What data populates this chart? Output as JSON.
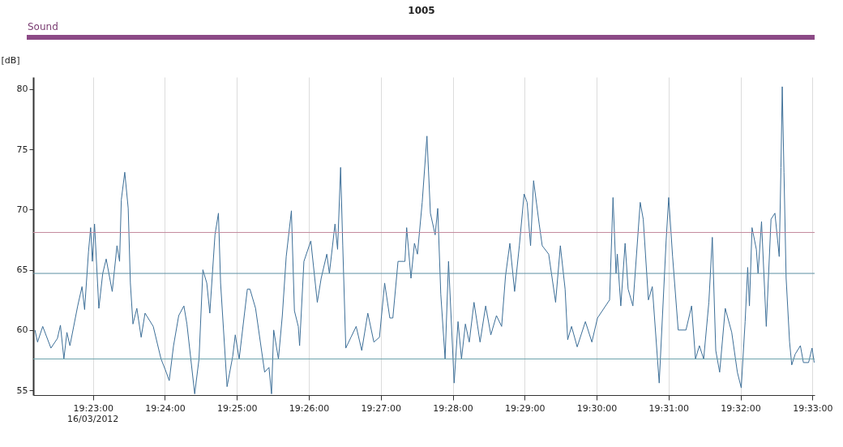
{
  "chart_data": {
    "type": "line",
    "title": "1005",
    "subtitle": "Sound",
    "ylabel": "[dB]",
    "annotations": [
      "16/03/2012"
    ],
    "x": [
      19.3699,
      19.3705,
      19.3717,
      19.3736,
      19.3751,
      19.3758,
      19.3766,
      19.3773,
      19.378,
      19.3798,
      19.3808,
      19.3814,
      19.3823,
      19.3828,
      19.3832,
      19.3837,
      19.3847,
      19.3856,
      19.3864,
      19.3878,
      19.3889,
      19.3895,
      19.3899,
      19.3907,
      19.3915,
      19.392,
      19.3926,
      19.3935,
      19.3945,
      19.3954,
      19.3973,
      19.3991,
      19.4001,
      19.401,
      19.402,
      19.4032,
      19.4044,
      19.4051,
      19.4069,
      19.4079,
      19.4088,
      19.4097,
      19.4104,
      19.4116,
      19.4124,
      19.4129,
      19.4144,
      19.4157,
      19.4163,
      19.4172,
      19.4191,
      19.4197,
      19.421,
      19.4231,
      19.4241,
      19.4247,
      19.4252,
      19.4263,
      19.4272,
      19.4281,
      19.4293,
      19.43,
      19.4309,
      19.4312,
      19.4322,
      19.4338,
      19.4353,
      19.4362,
      19.4375,
      19.4381,
      19.4394,
      19.44,
      19.4407,
      19.4412,
      19.4419,
      19.4431,
      19.4443,
      19.4456,
      19.447,
      19.4484,
      19.4497,
      19.4509,
      19.4521,
      19.4528,
      19.454,
      19.4556,
      19.456,
      19.457,
      19.4578,
      19.4585,
      19.4596,
      19.4607,
      19.4615,
      19.4626,
      19.4632,
      19.4639,
      19.4649,
      19.4657,
      19.467,
      19.4679,
      19.4687,
      19.4696,
      19.4705,
      19.4716,
      19.473,
      19.4743,
      19.4755,
      19.4768,
      19.478,
      19.4789,
      19.4799,
      19.481,
      19.4821,
      19.4832,
      19.4839,
      19.4847,
      19.4854,
      19.4867,
      19.4874,
      19.4889,
      19.4905,
      19.4916,
      19.4927,
      19.4933,
      19.4942,
      19.4955,
      19.4974,
      19.4989,
      19.5002,
      19.503,
      19.5038,
      19.5045,
      19.5048,
      19.5056,
      19.5066,
      19.5073,
      19.5084,
      19.5101,
      19.5108,
      19.512,
      19.5129,
      19.5145,
      19.5161,
      19.5167,
      19.5176,
      19.5189,
      19.5207,
      19.522,
      19.5229,
      19.5238,
      19.5248,
      19.526,
      19.5268,
      19.5276,
      19.5285,
      19.5298,
      19.5313,
      19.5326,
      19.5335,
      19.5344,
      19.535,
      19.5354,
      19.536,
      19.537,
      19.5374,
      19.5382,
      19.5393,
      19.5404,
      19.5413,
      19.5423,
      19.5427,
      19.543,
      19.5434,
      19.5439,
      19.5447,
      19.5452,
      19.546,
      19.5472,
      19.5479,
      19.5491,
      19.5499,
      19.5504
    ],
    "series": [
      {
        "color": "#3d6f98",
        "values": [
          60.0,
          59.0,
          60.3,
          58.5,
          59.3,
          60.4,
          57.6,
          59.8,
          58.7,
          62.0,
          63.6,
          61.7,
          66.5,
          68.5,
          65.7,
          68.8,
          61.8,
          64.7,
          65.9,
          63.2,
          67.0,
          65.7,
          70.8,
          73.1,
          70.1,
          63.9,
          60.5,
          61.8,
          59.4,
          61.4,
          60.3,
          57.6,
          56.7,
          55.8,
          58.7,
          61.2,
          62.0,
          60.5,
          54.7,
          57.6,
          65.0,
          63.9,
          61.4,
          67.9,
          69.7,
          63.9,
          55.3,
          57.8,
          59.6,
          57.6,
          63.4,
          63.4,
          61.8,
          56.5,
          56.9,
          54.7,
          60.0,
          57.6,
          61.2,
          66.1,
          69.9,
          61.6,
          60.3,
          58.7,
          65.7,
          67.4,
          62.3,
          64.3,
          66.3,
          64.7,
          68.8,
          66.7,
          73.5,
          67.0,
          58.5,
          59.4,
          60.3,
          58.3,
          61.4,
          59.0,
          59.4,
          63.9,
          61.0,
          61.0,
          65.7,
          65.7,
          68.5,
          64.3,
          67.2,
          66.3,
          70.6,
          76.1,
          69.7,
          67.9,
          70.1,
          63.0,
          57.6,
          65.7,
          55.6,
          60.7,
          57.6,
          60.5,
          59.0,
          62.3,
          59.0,
          62.0,
          59.6,
          61.2,
          60.3,
          64.5,
          67.2,
          63.2,
          67.0,
          71.3,
          70.6,
          67.0,
          72.4,
          68.8,
          67.0,
          66.3,
          62.3,
          67.0,
          63.4,
          59.2,
          60.3,
          58.6,
          60.7,
          59.0,
          61.0,
          62.5,
          71.0,
          64.7,
          66.3,
          62.0,
          67.2,
          63.4,
          62.0,
          70.6,
          69.2,
          62.5,
          63.6,
          55.6,
          67.4,
          71.0,
          66.1,
          60.0,
          60.0,
          62.0,
          57.6,
          58.7,
          57.6,
          62.3,
          67.7,
          58.3,
          56.5,
          61.8,
          59.8,
          56.5,
          55.2,
          60.7,
          65.2,
          62.0,
          68.5,
          66.7,
          64.7,
          69.0,
          60.3,
          69.2,
          69.7,
          66.1,
          73.5,
          80.2,
          73.1,
          64.3,
          59.0,
          57.1,
          58.0,
          58.7,
          57.3,
          57.3,
          58.5,
          57.3
        ]
      }
    ],
    "xlim": [
      19.3695,
      19.5505
    ],
    "ylim": [
      54.6,
      81
    ],
    "xticks": [
      {
        "value": 19.383333,
        "label": "19:23:00"
      },
      {
        "value": 19.4,
        "label": "19:24:00"
      },
      {
        "value": 19.416667,
        "label": "19:25:00"
      },
      {
        "value": 19.433333,
        "label": "19:26:00"
      },
      {
        "value": 19.45,
        "label": "19:27:00"
      },
      {
        "value": 19.466667,
        "label": "19:28:00"
      },
      {
        "value": 19.483333,
        "label": "19:29:00"
      },
      {
        "value": 19.5,
        "label": "19:30:00"
      },
      {
        "value": 19.516667,
        "label": "19:31:00"
      },
      {
        "value": 19.533333,
        "label": "19:32:00"
      },
      {
        "value": 19.55,
        "label": "19:33:00"
      }
    ],
    "yticks": [
      55,
      60,
      65,
      70,
      75,
      80
    ],
    "grid": "x",
    "ref_lines": [
      {
        "axis": "y",
        "value": 68.1,
        "color": "#c48a9c"
      },
      {
        "axis": "y",
        "value": 64.7,
        "color": "#5b8fa3"
      },
      {
        "axis": "y",
        "value": 57.6,
        "color": "#6ba3ab"
      }
    ]
  }
}
